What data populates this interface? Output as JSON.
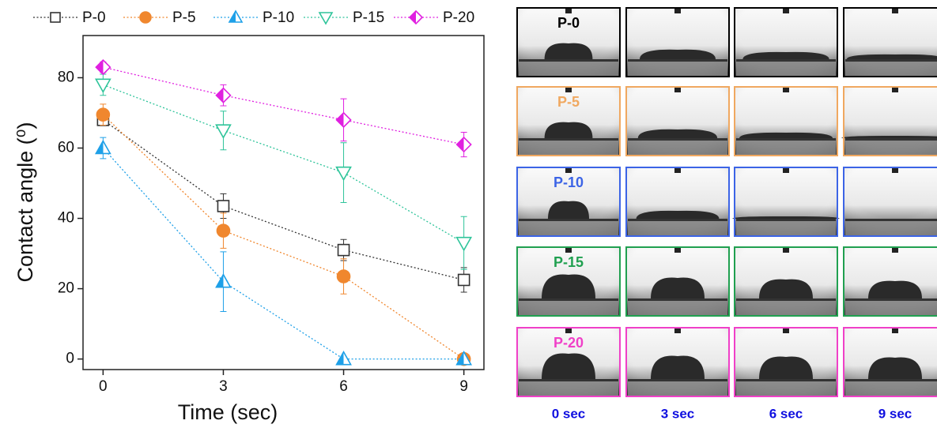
{
  "chart_data": {
    "type": "line",
    "xlabel": "Time (sec)",
    "ylabel": "Contact angle (⁰)",
    "x": [
      0,
      3,
      6,
      9
    ],
    "xlim": [
      -0.5,
      9.5
    ],
    "xticks": [
      0,
      3,
      6,
      9
    ],
    "ylim": [
      -3,
      92
    ],
    "yticks": [
      0,
      20,
      40,
      60,
      80
    ],
    "series": [
      {
        "name": "P-0",
        "color": "#333333",
        "marker": "square",
        "fill": "open",
        "values": [
          68,
          43.5,
          31,
          22.5
        ],
        "errors": [
          1.5,
          3.5,
          3,
          3.5
        ]
      },
      {
        "name": "P-5",
        "color": "#f0872e",
        "marker": "circle",
        "fill": "filled",
        "values": [
          69.5,
          36.5,
          23.5,
          0
        ],
        "errors": [
          3,
          5,
          5,
          0
        ]
      },
      {
        "name": "P-10",
        "color": "#1ea0e8",
        "marker": "triangle-up",
        "fill": "half",
        "values": [
          60,
          22,
          0,
          0
        ],
        "errors": [
          3,
          8.5,
          0,
          0
        ]
      },
      {
        "name": "P-15",
        "color": "#2ec49a",
        "marker": "triangle-down",
        "fill": "open",
        "values": [
          78,
          65,
          53,
          33
        ],
        "errors": [
          3,
          5.5,
          8.5,
          7.5
        ]
      },
      {
        "name": "P-20",
        "color": "#e020e0",
        "marker": "diamond",
        "fill": "half",
        "values": [
          83,
          75,
          68,
          61
        ],
        "errors": [
          1.5,
          3,
          6,
          3.5
        ]
      }
    ]
  },
  "images": {
    "rows": [
      {
        "label": "P-0",
        "color": "#000000"
      },
      {
        "label": "P-5",
        "color": "#f0a860"
      },
      {
        "label": "P-10",
        "color": "#3c64e6"
      },
      {
        "label": "P-15",
        "color": "#20a050"
      },
      {
        "label": "P-20",
        "color": "#f040c8"
      }
    ],
    "columns": [
      "0 sec",
      "3 sec",
      "6 sec",
      "9 sec"
    ],
    "column_label_color": "#1010e0"
  }
}
